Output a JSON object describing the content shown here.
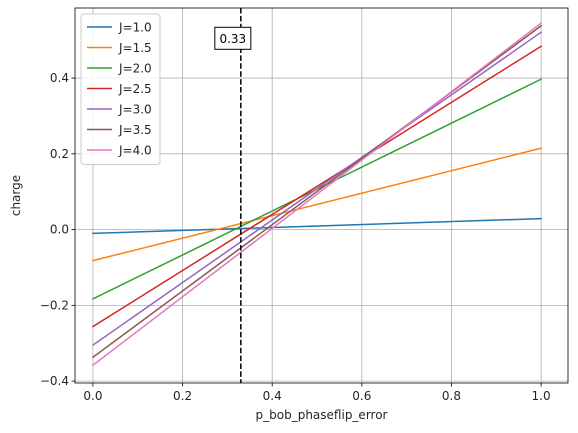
{
  "chart_data": {
    "type": "line",
    "title": "",
    "xlabel": "p_bob_phaseflip_error",
    "ylabel": "charge",
    "xlim": [
      -0.04,
      1.06
    ],
    "ylim": [
      -0.405,
      0.585
    ],
    "xticks": [
      0.0,
      0.2,
      0.4,
      0.6,
      0.8,
      1.0
    ],
    "xtick_labels": [
      "0.0",
      "0.2",
      "0.4",
      "0.6",
      "0.8",
      "1.0"
    ],
    "yticks": [
      -0.4,
      -0.2,
      0.0,
      0.2,
      0.4
    ],
    "ytick_labels": [
      "−0.4",
      "−0.2",
      "0.0",
      "0.2",
      "0.4"
    ],
    "grid": true,
    "legend_position": "upper-left",
    "x": [
      0.0,
      1.0
    ],
    "series": [
      {
        "name": "J=1.0",
        "color": "#1f77b4",
        "values": [
          -0.01,
          0.029
        ]
      },
      {
        "name": "J=1.5",
        "color": "#ff7f0e",
        "values": [
          -0.082,
          0.215
        ]
      },
      {
        "name": "J=2.0",
        "color": "#2ca02c",
        "values": [
          -0.183,
          0.397
        ]
      },
      {
        "name": "J=2.5",
        "color": "#d62728",
        "values": [
          -0.256,
          0.484
        ]
      },
      {
        "name": "J=3.0",
        "color": "#9467bd",
        "values": [
          -0.305,
          0.521
        ]
      },
      {
        "name": "J=3.5",
        "color": "#8c564b",
        "values": [
          -0.337,
          0.538
        ]
      },
      {
        "name": "J=4.0",
        "color": "#e377c2",
        "values": [
          -0.358,
          0.545
        ]
      }
    ],
    "vline": {
      "x": 0.33,
      "color": "#000000",
      "style": "dashed"
    },
    "annotation": {
      "text": "0.33",
      "x": 0.33,
      "y": 0.505
    }
  }
}
